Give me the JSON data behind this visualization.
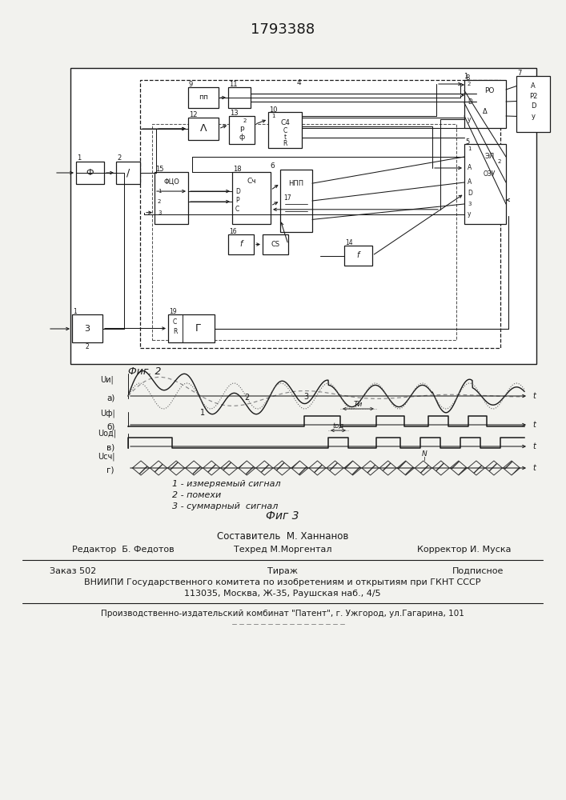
{
  "title": "1793388",
  "title_fontsize": 12,
  "background_color": "#f2f2ee",
  "fig2_label": "Фиг. 2",
  "fig3_label": "Фиг 3",
  "legend_lines": [
    "1 - измеряемый сигнал",
    "2 - помехи",
    "3 - суммарный  сигнал"
  ],
  "footer_line1": "Составитель  М. Ханнанов",
  "footer_line2_left": "Редактор  Б. Федотов",
  "footer_line2_mid": "Техред М.Моргентал",
  "footer_line2_right": "Корректор И. Муска",
  "footer_line3_left": "Заказ 502",
  "footer_line3_mid": "Тираж",
  "footer_line3_right": "Подписное",
  "footer_line4": "ВНИИПИ Государственного комитета по изобретениям и открытиям при ГКНТ СССР",
  "footer_line5": "113035, Москва, Ж-35, Раушская наб., 4/5",
  "footer_line6": "Производственно-издательский комбинат \"Патент\", г. Ужгород, ул.Гагарина, 101"
}
